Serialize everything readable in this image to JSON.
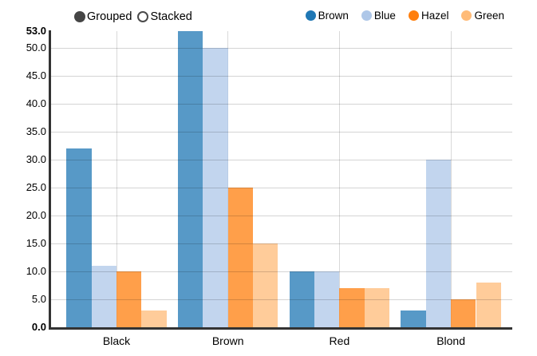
{
  "controls": {
    "options": [
      {
        "label": "Grouped",
        "selected": true
      },
      {
        "label": "Stacked",
        "selected": false
      }
    ]
  },
  "legend": {
    "position": "top-right"
  },
  "chart_data": {
    "type": "bar",
    "mode": "grouped",
    "title": "",
    "xlabel": "",
    "ylabel": "",
    "categories": [
      "Black",
      "Brown",
      "Red",
      "Blond"
    ],
    "series": [
      {
        "name": "Brown",
        "color": "#1f77b4",
        "values": [
          32,
          53,
          10,
          3
        ]
      },
      {
        "name": "Blue",
        "color": "#aec7e8",
        "values": [
          11,
          50,
          10,
          30
        ]
      },
      {
        "name": "Hazel",
        "color": "#ff7f0e",
        "values": [
          10,
          25,
          7,
          5
        ]
      },
      {
        "name": "Green",
        "color": "#ffbb78",
        "values": [
          3,
          15,
          7,
          8
        ]
      }
    ],
    "ylim": [
      0,
      53
    ],
    "y_ticks": [
      "0.0",
      "5.0",
      "10.0",
      "15.0",
      "20.0",
      "25.0",
      "30.0",
      "35.0",
      "40.0",
      "45.0",
      "50.0",
      "53.0"
    ],
    "grid": true,
    "legend_position": "top-right"
  }
}
